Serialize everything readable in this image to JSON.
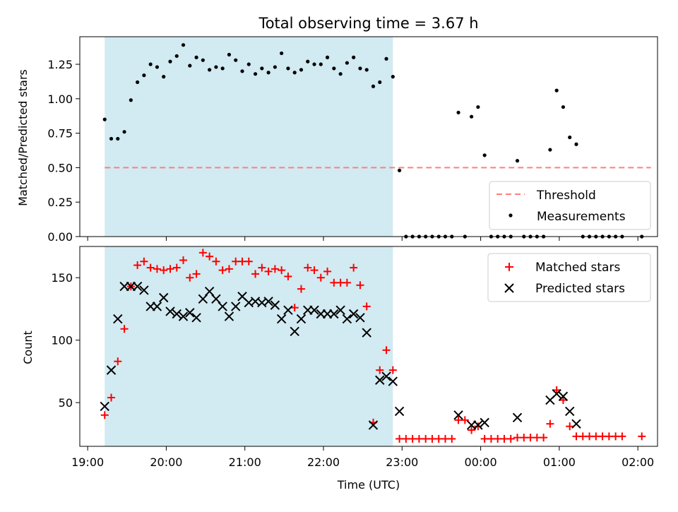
{
  "chart_data": [
    {
      "type": "scatter",
      "title": "Total observing time = 3.67 h",
      "ylabel": "Matched/Predicted stars",
      "xlabel": "",
      "xlim": [
        "19:00",
        "02:15"
      ],
      "ylim": [
        0,
        1.45
      ],
      "x_ticks": [
        "19:00",
        "20:00",
        "21:00",
        "22:00",
        "23:00",
        "00:00",
        "01:00",
        "02:00"
      ],
      "y_ticks": [
        "0.00",
        "0.25",
        "0.50",
        "0.75",
        "1.00",
        "1.25"
      ],
      "shaded_region": {
        "x": [
          "19:13",
          "22:53"
        ],
        "color": "#add8e6"
      },
      "legend": {
        "location": "lower right",
        "entries": [
          "Threshold",
          "Measurements"
        ]
      },
      "series": [
        {
          "name": "Threshold",
          "style": "dashed-line",
          "color": "#ff7f7f",
          "x": [
            "19:13",
            "02:10"
          ],
          "y": [
            0.5,
            0.5
          ]
        },
        {
          "name": "Measurements",
          "style": "dot",
          "color": "#000000",
          "points": [
            [
              "19:13",
              0.85
            ],
            [
              "19:18",
              0.71
            ],
            [
              "19:23",
              0.71
            ],
            [
              "19:28",
              0.76
            ],
            [
              "19:33",
              0.99
            ],
            [
              "19:38",
              1.12
            ],
            [
              "19:43",
              1.17
            ],
            [
              "19:48",
              1.25
            ],
            [
              "19:53",
              1.23
            ],
            [
              "19:58",
              1.16
            ],
            [
              "20:03",
              1.27
            ],
            [
              "20:08",
              1.31
            ],
            [
              "20:13",
              1.39
            ],
            [
              "20:18",
              1.24
            ],
            [
              "20:23",
              1.3
            ],
            [
              "20:28",
              1.28
            ],
            [
              "20:33",
              1.21
            ],
            [
              "20:38",
              1.23
            ],
            [
              "20:43",
              1.22
            ],
            [
              "20:48",
              1.32
            ],
            [
              "20:53",
              1.28
            ],
            [
              "20:58",
              1.2
            ],
            [
              "21:03",
              1.25
            ],
            [
              "21:08",
              1.18
            ],
            [
              "21:13",
              1.22
            ],
            [
              "21:18",
              1.19
            ],
            [
              "21:23",
              1.23
            ],
            [
              "21:28",
              1.33
            ],
            [
              "21:33",
              1.22
            ],
            [
              "21:38",
              1.19
            ],
            [
              "21:43",
              1.21
            ],
            [
              "21:48",
              1.27
            ],
            [
              "21:53",
              1.25
            ],
            [
              "21:58",
              1.25
            ],
            [
              "22:03",
              1.3
            ],
            [
              "22:08",
              1.22
            ],
            [
              "22:13",
              1.18
            ],
            [
              "22:18",
              1.26
            ],
            [
              "22:23",
              1.3
            ],
            [
              "22:28",
              1.22
            ],
            [
              "22:33",
              1.21
            ],
            [
              "22:38",
              1.09
            ],
            [
              "22:43",
              1.12
            ],
            [
              "22:48",
              1.29
            ],
            [
              "22:53",
              1.16
            ],
            [
              "22:58",
              0.48
            ],
            [
              "23:03",
              0.0
            ],
            [
              "23:08",
              0.0
            ],
            [
              "23:13",
              0.0
            ],
            [
              "23:18",
              0.0
            ],
            [
              "23:23",
              0.0
            ],
            [
              "23:28",
              0.0
            ],
            [
              "23:33",
              0.0
            ],
            [
              "23:38",
              0.0
            ],
            [
              "23:43",
              0.9
            ],
            [
              "23:48",
              0.0
            ],
            [
              "23:53",
              0.87
            ],
            [
              "23:58",
              0.94
            ],
            [
              "00:03",
              0.59
            ],
            [
              "00:08",
              0.0
            ],
            [
              "00:13",
              0.0
            ],
            [
              "00:18",
              0.0
            ],
            [
              "00:23",
              0.0
            ],
            [
              "00:28",
              0.55
            ],
            [
              "00:33",
              0.0
            ],
            [
              "00:38",
              0.0
            ],
            [
              "00:43",
              0.0
            ],
            [
              "00:48",
              0.0
            ],
            [
              "00:53",
              0.63
            ],
            [
              "00:58",
              1.06
            ],
            [
              "01:03",
              0.94
            ],
            [
              "01:08",
              0.72
            ],
            [
              "01:13",
              0.67
            ],
            [
              "01:18",
              0.0
            ],
            [
              "01:23",
              0.0
            ],
            [
              "01:28",
              0.0
            ],
            [
              "01:33",
              0.0
            ],
            [
              "01:38",
              0.0
            ],
            [
              "01:43",
              0.0
            ],
            [
              "01:48",
              0.0
            ],
            [
              "02:03",
              0.0
            ]
          ]
        }
      ]
    },
    {
      "type": "scatter",
      "title": "",
      "ylabel": "Count",
      "xlabel": "Time (UTC)",
      "xlim": [
        "19:00",
        "02:15"
      ],
      "ylim": [
        15,
        175
      ],
      "x_ticks": [
        "19:00",
        "20:00",
        "21:00",
        "22:00",
        "23:00",
        "00:00",
        "01:00",
        "02:00"
      ],
      "y_ticks": [
        "50",
        "100",
        "150"
      ],
      "shaded_region": {
        "x": [
          "19:13",
          "22:53"
        ],
        "color": "#add8e6"
      },
      "legend": {
        "location": "upper right",
        "entries": [
          "Matched stars",
          "Predicted stars"
        ]
      },
      "series": [
        {
          "name": "Matched stars",
          "marker": "+",
          "color": "#ff0000",
          "points": [
            [
              "19:13",
              40
            ],
            [
              "19:18",
              54
            ],
            [
              "19:23",
              83
            ],
            [
              "19:28",
              109
            ],
            [
              "19:33",
              143
            ],
            [
              "19:38",
              160
            ],
            [
              "19:43",
              163
            ],
            [
              "19:48",
              158
            ],
            [
              "19:53",
              157
            ],
            [
              "19:58",
              156
            ],
            [
              "20:03",
              157
            ],
            [
              "20:08",
              158
            ],
            [
              "20:13",
              164
            ],
            [
              "20:18",
              150
            ],
            [
              "20:23",
              153
            ],
            [
              "20:28",
              170
            ],
            [
              "20:33",
              167
            ],
            [
              "20:38",
              163
            ],
            [
              "20:43",
              156
            ],
            [
              "20:48",
              157
            ],
            [
              "20:53",
              163
            ],
            [
              "20:58",
              163
            ],
            [
              "21:03",
              163
            ],
            [
              "21:08",
              153
            ],
            [
              "21:13",
              158
            ],
            [
              "21:18",
              155
            ],
            [
              "21:23",
              157
            ],
            [
              "21:28",
              156
            ],
            [
              "21:33",
              151
            ],
            [
              "21:38",
              126
            ],
            [
              "21:43",
              141
            ],
            [
              "21:48",
              158
            ],
            [
              "21:53",
              156
            ],
            [
              "21:58",
              150
            ],
            [
              "22:03",
              155
            ],
            [
              "22:08",
              146
            ],
            [
              "22:13",
              146
            ],
            [
              "22:18",
              146
            ],
            [
              "22:23",
              158
            ],
            [
              "22:28",
              144
            ],
            [
              "22:33",
              127
            ],
            [
              "22:38",
              34
            ],
            [
              "22:43",
              76
            ],
            [
              "22:48",
              92
            ],
            [
              "22:53",
              76
            ],
            [
              "22:58",
              21
            ],
            [
              "23:03",
              21
            ],
            [
              "23:08",
              21
            ],
            [
              "23:13",
              21
            ],
            [
              "23:18",
              21
            ],
            [
              "23:23",
              21
            ],
            [
              "23:28",
              21
            ],
            [
              "23:33",
              21
            ],
            [
              "23:38",
              21
            ],
            [
              "23:43",
              36
            ],
            [
              "23:48",
              36
            ],
            [
              "23:53",
              28
            ],
            [
              "23:58",
              31
            ],
            [
              "00:03",
              21
            ],
            [
              "00:08",
              21
            ],
            [
              "00:13",
              21
            ],
            [
              "00:18",
              21
            ],
            [
              "00:23",
              21
            ],
            [
              "00:28",
              22
            ],
            [
              "00:33",
              22
            ],
            [
              "00:38",
              22
            ],
            [
              "00:43",
              22
            ],
            [
              "00:48",
              22
            ],
            [
              "00:53",
              33
            ],
            [
              "00:58",
              60
            ],
            [
              "01:03",
              52
            ],
            [
              "01:08",
              31
            ],
            [
              "01:13",
              23
            ],
            [
              "01:18",
              23
            ],
            [
              "01:23",
              23
            ],
            [
              "01:28",
              23
            ],
            [
              "01:33",
              23
            ],
            [
              "01:38",
              23
            ],
            [
              "01:43",
              23
            ],
            [
              "01:48",
              23
            ],
            [
              "02:03",
              23
            ]
          ]
        },
        {
          "name": "Predicted stars",
          "marker": "x",
          "color": "#000000",
          "points": [
            [
              "19:13",
              47
            ],
            [
              "19:18",
              76
            ],
            [
              "19:23",
              117
            ],
            [
              "19:28",
              143
            ],
            [
              "19:33",
              143
            ],
            [
              "19:38",
              143
            ],
            [
              "19:43",
              140
            ],
            [
              "19:48",
              127
            ],
            [
              "19:53",
              127
            ],
            [
              "19:58",
              134
            ],
            [
              "20:03",
              123
            ],
            [
              "20:08",
              121
            ],
            [
              "20:13",
              119
            ],
            [
              "20:18",
              122
            ],
            [
              "20:23",
              118
            ],
            [
              "20:28",
              133
            ],
            [
              "20:33",
              139
            ],
            [
              "20:38",
              133
            ],
            [
              "20:43",
              127
            ],
            [
              "20:48",
              119
            ],
            [
              "20:53",
              127
            ],
            [
              "20:58",
              135
            ],
            [
              "21:03",
              130
            ],
            [
              "21:08",
              131
            ],
            [
              "21:13",
              130
            ],
            [
              "21:18",
              131
            ],
            [
              "21:23",
              128
            ],
            [
              "21:28",
              117
            ],
            [
              "21:33",
              124
            ],
            [
              "21:38",
              107
            ],
            [
              "21:43",
              117
            ],
            [
              "21:48",
              124
            ],
            [
              "21:53",
              124
            ],
            [
              "21:58",
              121
            ],
            [
              "22:03",
              121
            ],
            [
              "22:08",
              121
            ],
            [
              "22:13",
              124
            ],
            [
              "22:18",
              117
            ],
            [
              "22:23",
              121
            ],
            [
              "22:28",
              118
            ],
            [
              "22:33",
              106
            ],
            [
              "22:38",
              32
            ],
            [
              "22:43",
              68
            ],
            [
              "22:48",
              71
            ],
            [
              "22:53",
              67
            ],
            [
              "22:58",
              43
            ],
            [
              "23:43",
              40
            ],
            [
              "23:53",
              32
            ],
            [
              "23:58",
              32
            ],
            [
              "00:03",
              34
            ],
            [
              "00:28",
              38
            ],
            [
              "00:53",
              52
            ],
            [
              "00:58",
              57
            ],
            [
              "01:03",
              55
            ],
            [
              "01:08",
              43
            ],
            [
              "01:13",
              33
            ]
          ]
        }
      ]
    }
  ]
}
